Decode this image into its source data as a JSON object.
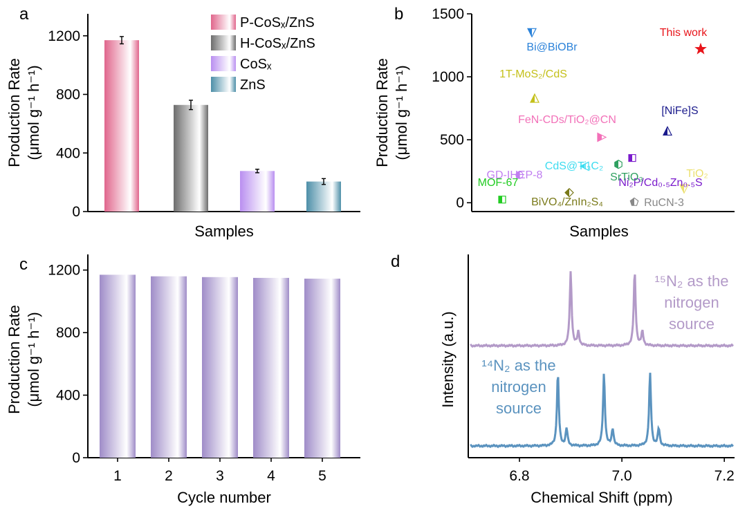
{
  "chart_data": [
    {
      "panel": "a",
      "type": "bar",
      "xlabel": "Samples",
      "ylabel_line1": "Production Rate",
      "ylabel_line2": "(μmol g⁻¹ h⁻¹)",
      "ylim": [
        0,
        1350
      ],
      "yticks": [
        "0",
        "400",
        "800",
        "1200"
      ],
      "series": [
        {
          "name": "P-CoSₓ/ZnS",
          "value": 1170,
          "error": 25,
          "color": "#e0668c"
        },
        {
          "name": "H-CoSₓ/ZnS",
          "value": 728,
          "error": 32,
          "color": "#6d6d6d"
        },
        {
          "name": "CoSₓ",
          "value": 277,
          "error": 12,
          "color": "#b98ff0"
        },
        {
          "name": "ZnS",
          "value": 205,
          "error": 20,
          "color": "#4d8fa8"
        }
      ]
    },
    {
      "panel": "b",
      "type": "scatter",
      "xlabel": "Samples",
      "ylabel_line1": "Production Rate",
      "ylabel_line2": "(μmol g⁻¹ h⁻¹)",
      "ylim": [
        -70,
        1500
      ],
      "yticks": [
        "0",
        "500",
        "1000",
        "1500"
      ],
      "points": [
        {
          "name": "This work",
          "value": 1220,
          "color": "#e8141a",
          "marker": "star"
        },
        {
          "name": "Bi@BiOBr",
          "value": 1350,
          "color": "#2b82d9",
          "marker": "tri-down"
        },
        {
          "name": "1T-MoS₂/CdS",
          "value": 830,
          "color": "#c4c01a",
          "marker": "tri-up"
        },
        {
          "name": "FeN-CDs/TiO₂@CN",
          "value": 520,
          "color": "#f270b8",
          "marker": "tri-right"
        },
        {
          "name": "[NiFe]S",
          "value": 570,
          "color": "#1a1a8c",
          "marker": "tri-up"
        },
        {
          "name": "Ni₂P/Cd₀.₅Zn₀.₅S",
          "value": 355,
          "color": "#7a1acc",
          "marker": "square"
        },
        {
          "name": "CdS@Ti₃C₂",
          "value": 290,
          "color": "#3ddcf0",
          "marker": "tri-left"
        },
        {
          "name": "GD-IHEP-8",
          "value": 220,
          "color": "#c07ef0",
          "marker": "circle"
        },
        {
          "name": "SrTiO₃",
          "value": 305,
          "color": "#2fa060",
          "marker": "hexagon"
        },
        {
          "name": "TiO₂",
          "value": 110,
          "color": "#ece070",
          "marker": "tri-down"
        },
        {
          "name": "MOF-67",
          "value": 25,
          "color": "#22cc22",
          "marker": "square"
        },
        {
          "name": "BiVO₄/ZnIn₂S₄",
          "value": 80,
          "color": "#7a7a1a",
          "marker": "diamond"
        },
        {
          "name": "RuCN-3",
          "value": 5,
          "color": "#888888",
          "marker": "pentagon"
        }
      ]
    },
    {
      "panel": "c",
      "type": "bar",
      "xlabel": "Cycle number",
      "ylabel_line1": "Production Rate",
      "ylabel_line2": "(μmol g⁻¹ h⁻¹)",
      "ylim": [
        0,
        1300
      ],
      "yticks": [
        "0",
        "400",
        "800",
        "1200"
      ],
      "categories": [
        "1",
        "2",
        "3",
        "4",
        "5"
      ],
      "values": [
        1170,
        1160,
        1155,
        1150,
        1145
      ],
      "color": "#9f8cc8"
    },
    {
      "panel": "d",
      "type": "line",
      "xlabel": "Chemical Shift (ppm)",
      "ylabel": "Intensity (a.u.)",
      "xlim": [
        6.7,
        7.22
      ],
      "xticks": [
        "6.8",
        "7.0",
        "7.2"
      ],
      "series": [
        {
          "name": "¹⁵N₂ as the nitrogen source",
          "label_line1": "¹⁵N₂ as the",
          "label_line2": "nitrogen",
          "label_line3": "source",
          "color": "#b39ac8",
          "peaks": [
            6.9,
            6.915,
            7.025,
            7.04
          ]
        },
        {
          "name": "¹⁴N₂ as the nitrogen source",
          "label_line1": "¹⁴N₂ as the",
          "label_line2": "nitrogen",
          "label_line3": "source",
          "color": "#5b93bf",
          "peaks": [
            6.875,
            6.892,
            6.965,
            6.982,
            7.055,
            7.072
          ]
        }
      ]
    }
  ]
}
